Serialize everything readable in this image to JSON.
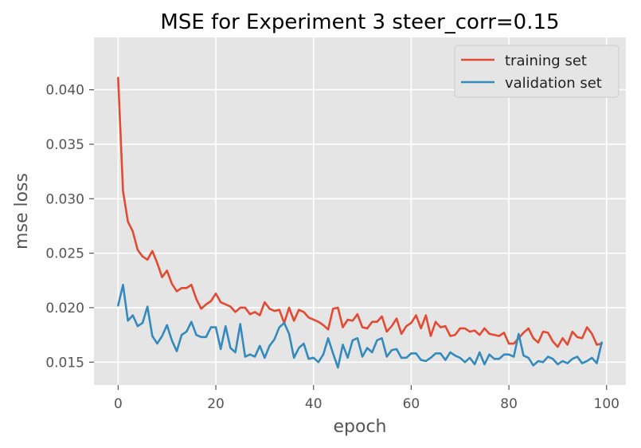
{
  "chart_data": {
    "type": "line",
    "title": "MSE for Experiment 3 steer_corr=0.15",
    "xlabel": "epoch",
    "ylabel": "mse loss",
    "xlim": [
      -4.95,
      103.95
    ],
    "ylim": [
      0.0129,
      0.0448
    ],
    "xticks": [
      0,
      20,
      40,
      60,
      80,
      100
    ],
    "xtick_labels": [
      "0",
      "20",
      "40",
      "60",
      "80",
      "100"
    ],
    "yticks": [
      0.015,
      0.02,
      0.025,
      0.03,
      0.035,
      0.04
    ],
    "ytick_labels": [
      "0.015",
      "0.020",
      "0.025",
      "0.030",
      "0.035",
      "0.040"
    ],
    "grid": true,
    "legend_position": "top-right",
    "x": [
      0,
      1,
      2,
      3,
      4,
      5,
      6,
      7,
      8,
      9,
      10,
      11,
      12,
      13,
      14,
      15,
      16,
      17,
      18,
      19,
      20,
      21,
      22,
      23,
      24,
      25,
      26,
      27,
      28,
      29,
      30,
      31,
      32,
      33,
      34,
      35,
      36,
      37,
      38,
      39,
      40,
      41,
      42,
      43,
      44,
      45,
      46,
      47,
      48,
      49,
      50,
      51,
      52,
      53,
      54,
      55,
      56,
      57,
      58,
      59,
      60,
      61,
      62,
      63,
      64,
      65,
      66,
      67,
      68,
      69,
      70,
      71,
      72,
      73,
      74,
      75,
      76,
      77,
      78,
      79,
      80,
      81,
      82,
      83,
      84,
      85,
      86,
      87,
      88,
      89,
      90,
      91,
      92,
      93,
      94,
      95,
      96,
      97,
      98,
      99
    ],
    "series": [
      {
        "name": "training set",
        "color": "#E24A33",
        "values": [
          0.0411,
          0.0307,
          0.0279,
          0.027,
          0.0253,
          0.0247,
          0.0244,
          0.0252,
          0.0241,
          0.0228,
          0.0234,
          0.0222,
          0.0215,
          0.0218,
          0.0218,
          0.0221,
          0.0208,
          0.0199,
          0.0203,
          0.0206,
          0.0213,
          0.0205,
          0.0203,
          0.0201,
          0.0196,
          0.02,
          0.02,
          0.0194,
          0.0196,
          0.0193,
          0.0205,
          0.0199,
          0.0197,
          0.0198,
          0.0186,
          0.02,
          0.0188,
          0.0198,
          0.0196,
          0.0191,
          0.0189,
          0.0187,
          0.0184,
          0.018,
          0.0199,
          0.02,
          0.0182,
          0.0189,
          0.0188,
          0.0194,
          0.0182,
          0.0181,
          0.0187,
          0.0187,
          0.0192,
          0.0178,
          0.0183,
          0.019,
          0.0176,
          0.0183,
          0.0186,
          0.0193,
          0.0181,
          0.0193,
          0.0174,
          0.0187,
          0.0182,
          0.0183,
          0.0174,
          0.0175,
          0.0181,
          0.0181,
          0.0178,
          0.0179,
          0.0175,
          0.0181,
          0.0176,
          0.0175,
          0.0174,
          0.0177,
          0.0167,
          0.0167,
          0.0172,
          0.0177,
          0.0181,
          0.0172,
          0.0168,
          0.0178,
          0.0177,
          0.0169,
          0.0164,
          0.0172,
          0.0166,
          0.0178,
          0.0173,
          0.0172,
          0.0182,
          0.0176,
          0.0166,
          0.0167
        ]
      },
      {
        "name": "validation set",
        "color": "#348ABD",
        "values": [
          0.0202,
          0.0221,
          0.0188,
          0.0193,
          0.0183,
          0.0186,
          0.0201,
          0.0174,
          0.0167,
          0.0174,
          0.0184,
          0.017,
          0.016,
          0.0175,
          0.0178,
          0.0187,
          0.0175,
          0.0173,
          0.0173,
          0.0182,
          0.0182,
          0.0162,
          0.0183,
          0.0163,
          0.0159,
          0.0185,
          0.0155,
          0.0157,
          0.0155,
          0.0165,
          0.0154,
          0.0165,
          0.0171,
          0.0182,
          0.0186,
          0.0176,
          0.0154,
          0.0163,
          0.0167,
          0.0153,
          0.0154,
          0.015,
          0.0157,
          0.0172,
          0.0158,
          0.0145,
          0.0166,
          0.0154,
          0.017,
          0.0172,
          0.0155,
          0.0163,
          0.0159,
          0.017,
          0.0172,
          0.0155,
          0.0161,
          0.0162,
          0.0154,
          0.0154,
          0.0158,
          0.0158,
          0.0152,
          0.0151,
          0.0154,
          0.0158,
          0.0158,
          0.0152,
          0.0159,
          0.0156,
          0.0154,
          0.015,
          0.0154,
          0.0148,
          0.0159,
          0.0148,
          0.0157,
          0.0153,
          0.0153,
          0.0157,
          0.0157,
          0.0155,
          0.0176,
          0.0156,
          0.0154,
          0.0147,
          0.0151,
          0.015,
          0.0155,
          0.0153,
          0.0148,
          0.0151,
          0.0149,
          0.0153,
          0.0155,
          0.0149,
          0.0151,
          0.0154,
          0.0149,
          0.0168
        ]
      }
    ]
  }
}
